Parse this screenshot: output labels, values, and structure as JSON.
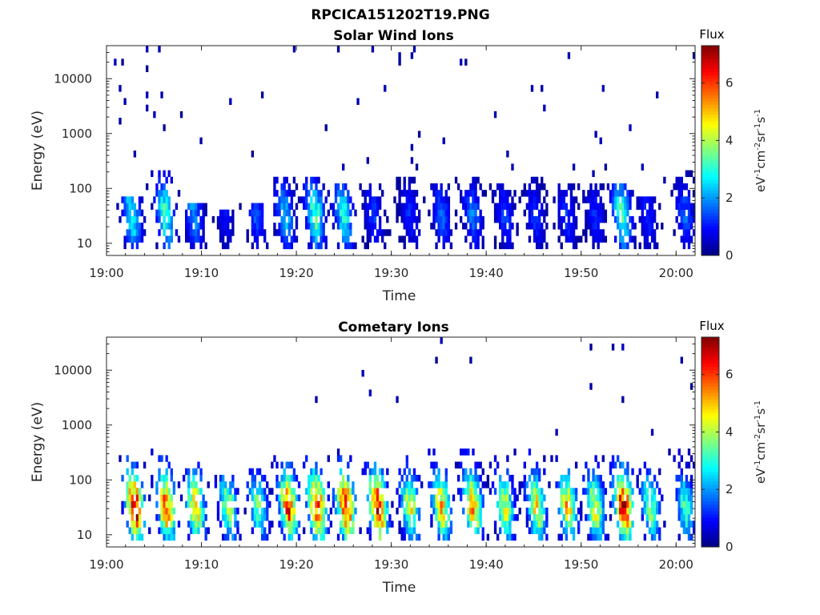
{
  "figure_title": "RPCICA151202T19.PNG",
  "chart_data": [
    {
      "type": "heatmap",
      "title": "Solar Wind Ions",
      "xlabel": "Time",
      "ylabel": "Energy (eV)",
      "x_tick_labels": [
        "19:00",
        "19:10",
        "19:20",
        "19:30",
        "19:40",
        "19:50",
        "20:00"
      ],
      "x_tick_values_min": [
        0,
        10,
        20,
        30,
        40,
        50,
        60
      ],
      "xlim_min": [
        0,
        62
      ],
      "y_scale": "log",
      "y_tick_labels": [
        "10",
        "100",
        "1000",
        "10000"
      ],
      "y_tick_values": [
        10,
        100,
        1000,
        10000
      ],
      "ylim": [
        6,
        40000
      ],
      "colorbar": {
        "title": "Flux",
        "label": "eV-1cm-2sr-1s-1",
        "ticks": [
          0,
          2,
          4,
          6
        ],
        "range": [
          0,
          7.3
        ],
        "colormap": "jet"
      },
      "bursts": [
        {
          "t": 2.7,
          "value": 3.0,
          "emax": 80
        },
        {
          "t": 6.2,
          "value": 3.3,
          "emax": 200
        },
        {
          "t": 9.2,
          "value": 2.0,
          "emax": 60
        },
        {
          "t": 12.5,
          "value": 1.0,
          "emax": 40
        },
        {
          "t": 15.8,
          "value": 1.5,
          "emax": 50
        },
        {
          "t": 18.8,
          "value": 2.4,
          "emax": 150
        },
        {
          "t": 22.0,
          "value": 3.4,
          "emax": 180
        },
        {
          "t": 25.0,
          "value": 3.0,
          "emax": 120
        },
        {
          "t": 28.2,
          "value": 1.3,
          "emax": 130
        },
        {
          "t": 32.0,
          "value": 1.2,
          "emax": 150
        },
        {
          "t": 35.3,
          "value": 1.6,
          "emax": 130
        },
        {
          "t": 38.6,
          "value": 1.8,
          "emax": 170
        },
        {
          "t": 42.0,
          "value": 1.4,
          "emax": 140
        },
        {
          "t": 45.2,
          "value": 1.3,
          "emax": 170
        },
        {
          "t": 48.5,
          "value": 1.3,
          "emax": 140
        },
        {
          "t": 51.5,
          "value": 1.2,
          "emax": 130
        },
        {
          "t": 54.3,
          "value": 3.4,
          "emax": 120
        },
        {
          "t": 57.0,
          "value": 1.2,
          "emax": 80
        },
        {
          "t": 61.0,
          "value": 1.6,
          "emax": 200
        }
      ],
      "background_density": 1.0
    },
    {
      "type": "heatmap",
      "title": "Cometary Ions",
      "xlabel": "Time",
      "ylabel": "Energy (eV)",
      "x_tick_labels": [
        "19:00",
        "19:10",
        "19:20",
        "19:30",
        "19:40",
        "19:50",
        "20:00"
      ],
      "x_tick_values_min": [
        0,
        10,
        20,
        30,
        40,
        50,
        60
      ],
      "xlim_min": [
        0,
        62
      ],
      "y_scale": "log",
      "y_tick_labels": [
        "10",
        "100",
        "1000",
        "10000"
      ],
      "y_tick_values": [
        10,
        100,
        1000,
        10000
      ],
      "ylim": [
        6,
        40000
      ],
      "colorbar": {
        "title": "Flux",
        "label": "eV-1cm-2sr-1s-1",
        "ticks": [
          0,
          2,
          4,
          6
        ],
        "range": [
          0,
          7.3
        ],
        "colormap": "jet"
      },
      "bursts": [
        {
          "t": 3.0,
          "value": 6.8,
          "emax": 300
        },
        {
          "t": 6.3,
          "value": 5.8,
          "emax": 400
        },
        {
          "t": 9.4,
          "value": 5.0,
          "emax": 200
        },
        {
          "t": 12.8,
          "value": 4.0,
          "emax": 120
        },
        {
          "t": 16.0,
          "value": 3.5,
          "emax": 150
        },
        {
          "t": 19.2,
          "value": 6.2,
          "emax": 300
        },
        {
          "t": 22.2,
          "value": 6.5,
          "emax": 400
        },
        {
          "t": 25.2,
          "value": 6.6,
          "emax": 250
        },
        {
          "t": 28.6,
          "value": 6.9,
          "emax": 200
        },
        {
          "t": 32.0,
          "value": 4.4,
          "emax": 300
        },
        {
          "t": 35.3,
          "value": 5.1,
          "emax": 400
        },
        {
          "t": 38.6,
          "value": 5.6,
          "emax": 400
        },
        {
          "t": 42.0,
          "value": 4.3,
          "emax": 300
        },
        {
          "t": 45.3,
          "value": 4.7,
          "emax": 400
        },
        {
          "t": 48.6,
          "value": 5.0,
          "emax": 300
        },
        {
          "t": 51.5,
          "value": 4.5,
          "emax": 300
        },
        {
          "t": 54.5,
          "value": 6.8,
          "emax": 300
        },
        {
          "t": 57.3,
          "value": 3.8,
          "emax": 200
        },
        {
          "t": 61.0,
          "value": 3.3,
          "emax": 400
        }
      ],
      "background_density": 0.35
    }
  ]
}
